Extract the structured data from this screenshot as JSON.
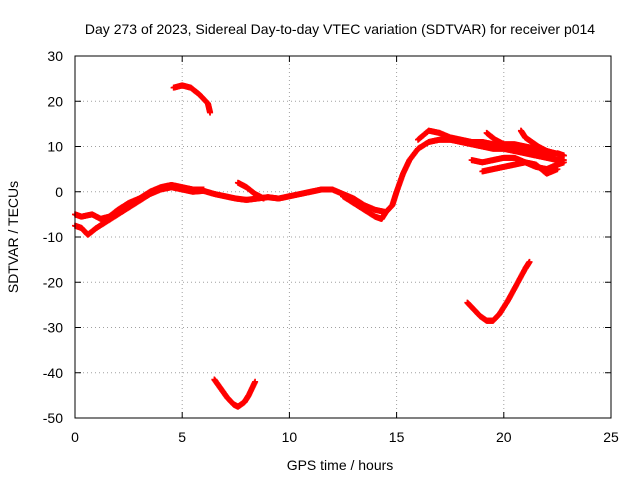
{
  "chart_data": {
    "type": "scatter",
    "title": "Day 273 of 2023, Sidereal Day-to-day VTEC variation (SDTVAR) for receiver p014",
    "xlabel": "GPS time / hours",
    "ylabel": "SDTVAR / TECUs",
    "xlim": [
      0,
      25
    ],
    "ylim": [
      -50,
      30
    ],
    "xticks": [
      0,
      5,
      10,
      15,
      20,
      25
    ],
    "yticks": [
      -50,
      -40,
      -30,
      -20,
      -10,
      0,
      10,
      20,
      30
    ],
    "grid": true,
    "marker_color": "#ff0000",
    "series": [
      {
        "name": "main-arc",
        "points": [
          [
            0.0,
            -7.5
          ],
          [
            0.3,
            -8.0
          ],
          [
            0.6,
            -9.5
          ],
          [
            1.0,
            -8.0
          ],
          [
            1.5,
            -6.5
          ],
          [
            2.0,
            -5.0
          ],
          [
            2.5,
            -3.5
          ],
          [
            3.0,
            -2.0
          ],
          [
            3.5,
            -0.5
          ],
          [
            4.0,
            0.5
          ],
          [
            4.5,
            1.0
          ],
          [
            5.0,
            0.5
          ],
          [
            5.5,
            0.0
          ],
          [
            6.0,
            0.2
          ],
          [
            6.5,
            -0.5
          ],
          [
            7.0,
            -1.0
          ],
          [
            7.5,
            -1.5
          ],
          [
            8.0,
            -1.8
          ],
          [
            8.5,
            -1.5
          ],
          [
            9.0,
            -1.2
          ],
          [
            9.5,
            -1.5
          ],
          [
            10.0,
            -1.0
          ],
          [
            10.5,
            -0.5
          ],
          [
            11.0,
            0.0
          ],
          [
            11.5,
            0.5
          ],
          [
            12.0,
            0.5
          ],
          [
            12.5,
            -0.5
          ],
          [
            13.0,
            -1.5
          ],
          [
            13.5,
            -3.0
          ],
          [
            14.0,
            -4.0
          ],
          [
            14.5,
            -4.5
          ],
          [
            14.8,
            -3.0
          ],
          [
            15.0,
            0.0
          ],
          [
            15.3,
            4.0
          ],
          [
            15.6,
            7.0
          ],
          [
            16.0,
            9.5
          ],
          [
            16.5,
            11.0
          ],
          [
            17.0,
            11.5
          ],
          [
            17.5,
            11.5
          ],
          [
            18.0,
            11.0
          ],
          [
            18.5,
            10.5
          ],
          [
            19.0,
            10.0
          ],
          [
            19.5,
            9.5
          ],
          [
            20.0,
            9.5
          ],
          [
            20.5,
            9.0
          ],
          [
            21.0,
            8.5
          ],
          [
            21.5,
            8.0
          ],
          [
            22.0,
            7.5
          ],
          [
            22.5,
            7.0
          ],
          [
            22.8,
            7.0
          ]
        ]
      },
      {
        "name": "early-branch",
        "points": [
          [
            0.0,
            -5.0
          ],
          [
            0.3,
            -5.5
          ],
          [
            0.8,
            -5.0
          ],
          [
            1.2,
            -6.0
          ],
          [
            1.6,
            -5.5
          ],
          [
            2.0,
            -4.0
          ],
          [
            2.5,
            -2.5
          ],
          [
            3.0,
            -1.5
          ],
          [
            3.5,
            0.0
          ],
          [
            4.0,
            1.0
          ],
          [
            4.5,
            1.5
          ],
          [
            5.0,
            1.0
          ],
          [
            5.5,
            0.5
          ],
          [
            6.0,
            0.5
          ]
        ]
      },
      {
        "name": "late-branch-a",
        "points": [
          [
            16.0,
            11.5
          ],
          [
            16.5,
            13.5
          ],
          [
            17.0,
            13.0
          ],
          [
            17.5,
            12.0
          ],
          [
            18.0,
            11.5
          ],
          [
            18.5,
            11.0
          ],
          [
            19.0,
            11.0
          ],
          [
            19.5,
            10.5
          ],
          [
            20.0,
            10.0
          ],
          [
            20.5,
            9.5
          ],
          [
            21.0,
            9.0
          ],
          [
            21.5,
            8.5
          ],
          [
            22.0,
            8.0
          ],
          [
            22.5,
            8.5
          ],
          [
            22.8,
            8.0
          ]
        ]
      },
      {
        "name": "late-branch-b",
        "points": [
          [
            18.5,
            7.0
          ],
          [
            19.0,
            6.5
          ],
          [
            19.5,
            7.0
          ],
          [
            20.0,
            7.5
          ],
          [
            20.5,
            7.5
          ],
          [
            21.0,
            6.5
          ],
          [
            21.5,
            5.5
          ],
          [
            22.0,
            5.0
          ],
          [
            22.5,
            6.0
          ],
          [
            22.8,
            6.5
          ]
        ]
      },
      {
        "name": "late-branch-c",
        "points": [
          [
            19.0,
            4.5
          ],
          [
            19.5,
            5.0
          ],
          [
            20.0,
            5.5
          ],
          [
            20.5,
            6.0
          ],
          [
            21.0,
            6.5
          ],
          [
            21.5,
            6.0
          ],
          [
            22.0,
            4.0
          ],
          [
            22.5,
            5.0
          ]
        ]
      },
      {
        "name": "late-branch-d",
        "points": [
          [
            19.2,
            13.0
          ],
          [
            19.6,
            11.5
          ],
          [
            20.0,
            10.5
          ],
          [
            20.5,
            10.5
          ],
          [
            21.0,
            10.0
          ],
          [
            21.5,
            9.5
          ],
          [
            22.0,
            9.0
          ]
        ]
      },
      {
        "name": "late-branch-e",
        "points": [
          [
            20.8,
            13.5
          ],
          [
            21.0,
            12.0
          ],
          [
            21.3,
            11.0
          ],
          [
            21.6,
            10.0
          ],
          [
            22.0,
            9.0
          ],
          [
            22.4,
            8.5
          ],
          [
            22.8,
            8.0
          ]
        ]
      },
      {
        "name": "upper-isolated-arc",
        "points": [
          [
            4.6,
            23.0
          ],
          [
            5.0,
            23.5
          ],
          [
            5.4,
            23.0
          ],
          [
            5.8,
            21.5
          ],
          [
            6.2,
            19.5
          ],
          [
            6.3,
            17.5
          ]
        ]
      },
      {
        "name": "lower-left-u",
        "points": [
          [
            6.5,
            -41.5
          ],
          [
            6.8,
            -43.5
          ],
          [
            7.1,
            -45.5
          ],
          [
            7.4,
            -47.0
          ],
          [
            7.6,
            -47.5
          ],
          [
            7.9,
            -46.5
          ],
          [
            8.1,
            -45.0
          ],
          [
            8.4,
            -42.0
          ]
        ]
      },
      {
        "name": "lower-right-check",
        "points": [
          [
            18.3,
            -24.5
          ],
          [
            18.6,
            -26.0
          ],
          [
            18.9,
            -27.5
          ],
          [
            19.2,
            -28.5
          ],
          [
            19.5,
            -28.5
          ],
          [
            19.8,
            -27.0
          ],
          [
            20.2,
            -24.0
          ],
          [
            20.6,
            -20.5
          ],
          [
            21.0,
            -17.0
          ],
          [
            21.2,
            -15.5
          ]
        ]
      },
      {
        "name": "mid-blip",
        "points": [
          [
            7.6,
            2.0
          ],
          [
            8.0,
            1.0
          ],
          [
            8.4,
            -0.5
          ],
          [
            8.8,
            -1.5
          ]
        ]
      },
      {
        "name": "dip-branch",
        "points": [
          [
            12.5,
            -1.0
          ],
          [
            13.0,
            -2.5
          ],
          [
            13.5,
            -4.0
          ],
          [
            14.0,
            -5.5
          ],
          [
            14.3,
            -6.0
          ],
          [
            14.5,
            -4.5
          ]
        ]
      }
    ]
  }
}
